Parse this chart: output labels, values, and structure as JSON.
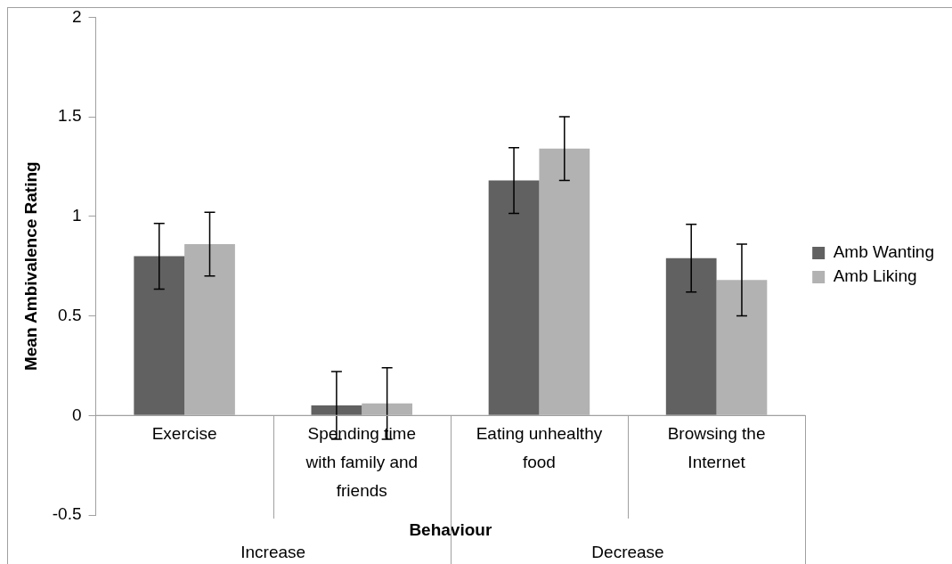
{
  "chart_data": {
    "type": "bar",
    "xlabel": "Behaviour",
    "ylabel": "Mean Ambivalence Rating",
    "categories": [
      "Exercise",
      "Spending time with family and friends",
      "Eating unhealthy food",
      "Browsing the Internet"
    ],
    "series": [
      {
        "name": "Amb Wanting",
        "color": "#616161",
        "values": [
          0.8,
          0.05,
          1.18,
          0.79
        ],
        "errors": [
          0.165,
          0.17,
          0.165,
          0.17
        ]
      },
      {
        "name": "Amb Liking",
        "color": "#b2b2b2",
        "values": [
          0.86,
          0.06,
          1.34,
          0.68
        ],
        "errors": [
          0.16,
          0.18,
          0.16,
          0.18
        ]
      }
    ],
    "annotations": [
      "Increase",
      "Decrease"
    ],
    "ylim": [
      -0.5,
      2
    ],
    "yticks": [
      -0.5,
      0,
      0.5,
      1,
      1.5,
      2
    ],
    "grid": false,
    "legend": "right"
  }
}
